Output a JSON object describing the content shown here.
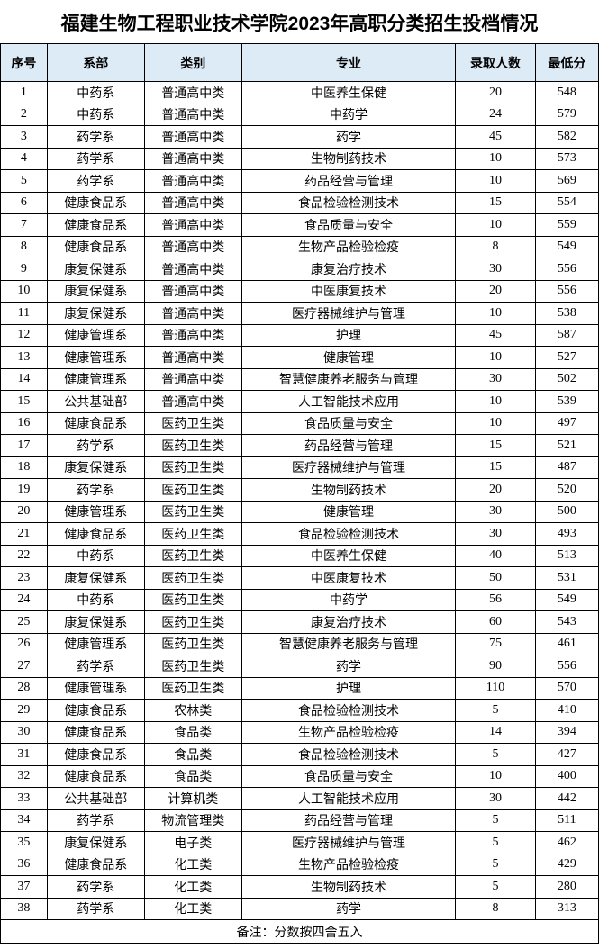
{
  "title": "福建生物工程职业技术学院2023年高职分类招生投档情况",
  "headers": {
    "no": "序号",
    "dept": "系部",
    "cat": "类别",
    "major": "专业",
    "count": "录取人数",
    "score": "最低分"
  },
  "footnote": "备注：分数按四舍五入",
  "colors": {
    "header_bg": "#ddebf7",
    "border": "#000000",
    "text": "#000000",
    "background": "#ffffff"
  },
  "rows": [
    {
      "no": "1",
      "dept": "中药系",
      "cat": "普通高中类",
      "major": "中医养生保健",
      "count": "20",
      "score": "548"
    },
    {
      "no": "2",
      "dept": "中药系",
      "cat": "普通高中类",
      "major": "中药学",
      "count": "24",
      "score": "579"
    },
    {
      "no": "3",
      "dept": "药学系",
      "cat": "普通高中类",
      "major": "药学",
      "count": "45",
      "score": "582"
    },
    {
      "no": "4",
      "dept": "药学系",
      "cat": "普通高中类",
      "major": "生物制药技术",
      "count": "10",
      "score": "573"
    },
    {
      "no": "5",
      "dept": "药学系",
      "cat": "普通高中类",
      "major": "药品经营与管理",
      "count": "10",
      "score": "569"
    },
    {
      "no": "6",
      "dept": "健康食品系",
      "cat": "普通高中类",
      "major": "食品检验检测技术",
      "count": "15",
      "score": "554"
    },
    {
      "no": "7",
      "dept": "健康食品系",
      "cat": "普通高中类",
      "major": "食品质量与安全",
      "count": "10",
      "score": "559"
    },
    {
      "no": "8",
      "dept": "健康食品系",
      "cat": "普通高中类",
      "major": "生物产品检验检疫",
      "count": "8",
      "score": "549"
    },
    {
      "no": "9",
      "dept": "康复保健系",
      "cat": "普通高中类",
      "major": "康复治疗技术",
      "count": "30",
      "score": "556"
    },
    {
      "no": "10",
      "dept": "康复保健系",
      "cat": "普通高中类",
      "major": "中医康复技术",
      "count": "20",
      "score": "556"
    },
    {
      "no": "11",
      "dept": "康复保健系",
      "cat": "普通高中类",
      "major": "医疗器械维护与管理",
      "count": "10",
      "score": "538"
    },
    {
      "no": "12",
      "dept": "健康管理系",
      "cat": "普通高中类",
      "major": "护理",
      "count": "45",
      "score": "587"
    },
    {
      "no": "13",
      "dept": "健康管理系",
      "cat": "普通高中类",
      "major": "健康管理",
      "count": "10",
      "score": "527"
    },
    {
      "no": "14",
      "dept": "健康管理系",
      "cat": "普通高中类",
      "major": "智慧健康养老服务与管理",
      "count": "30",
      "score": "502"
    },
    {
      "no": "15",
      "dept": "公共基础部",
      "cat": "普通高中类",
      "major": "人工智能技术应用",
      "count": "10",
      "score": "539"
    },
    {
      "no": "16",
      "dept": "健康食品系",
      "cat": "医药卫生类",
      "major": "食品质量与安全",
      "count": "10",
      "score": "497"
    },
    {
      "no": "17",
      "dept": "药学系",
      "cat": "医药卫生类",
      "major": "药品经营与管理",
      "count": "15",
      "score": "521"
    },
    {
      "no": "18",
      "dept": "康复保健系",
      "cat": "医药卫生类",
      "major": "医疗器械维护与管理",
      "count": "15",
      "score": "487"
    },
    {
      "no": "19",
      "dept": "药学系",
      "cat": "医药卫生类",
      "major": "生物制药技术",
      "count": "20",
      "score": "520"
    },
    {
      "no": "20",
      "dept": "健康管理系",
      "cat": "医药卫生类",
      "major": "健康管理",
      "count": "30",
      "score": "500"
    },
    {
      "no": "21",
      "dept": "健康食品系",
      "cat": "医药卫生类",
      "major": "食品检验检测技术",
      "count": "30",
      "score": "493"
    },
    {
      "no": "22",
      "dept": "中药系",
      "cat": "医药卫生类",
      "major": "中医养生保健",
      "count": "40",
      "score": "513"
    },
    {
      "no": "23",
      "dept": "康复保健系",
      "cat": "医药卫生类",
      "major": "中医康复技术",
      "count": "50",
      "score": "531"
    },
    {
      "no": "24",
      "dept": "中药系",
      "cat": "医药卫生类",
      "major": "中药学",
      "count": "56",
      "score": "549"
    },
    {
      "no": "25",
      "dept": "康复保健系",
      "cat": "医药卫生类",
      "major": "康复治疗技术",
      "count": "60",
      "score": "543"
    },
    {
      "no": "26",
      "dept": "健康管理系",
      "cat": "医药卫生类",
      "major": "智慧健康养老服务与管理",
      "count": "75",
      "score": "461"
    },
    {
      "no": "27",
      "dept": "药学系",
      "cat": "医药卫生类",
      "major": "药学",
      "count": "90",
      "score": "556"
    },
    {
      "no": "28",
      "dept": "健康管理系",
      "cat": "医药卫生类",
      "major": "护理",
      "count": "110",
      "score": "570"
    },
    {
      "no": "29",
      "dept": "健康食品系",
      "cat": "农林类",
      "major": "食品检验检测技术",
      "count": "5",
      "score": "410"
    },
    {
      "no": "30",
      "dept": "健康食品系",
      "cat": "食品类",
      "major": "生物产品检验检疫",
      "count": "14",
      "score": "394"
    },
    {
      "no": "31",
      "dept": "健康食品系",
      "cat": "食品类",
      "major": "食品检验检测技术",
      "count": "5",
      "score": "427"
    },
    {
      "no": "32",
      "dept": "健康食品系",
      "cat": "食品类",
      "major": "食品质量与安全",
      "count": "10",
      "score": "400"
    },
    {
      "no": "33",
      "dept": "公共基础部",
      "cat": "计算机类",
      "major": "人工智能技术应用",
      "count": "30",
      "score": "442"
    },
    {
      "no": "34",
      "dept": "药学系",
      "cat": "物流管理类",
      "major": "药品经营与管理",
      "count": "5",
      "score": "511"
    },
    {
      "no": "35",
      "dept": "康复保健系",
      "cat": "电子类",
      "major": "医疗器械维护与管理",
      "count": "5",
      "score": "462"
    },
    {
      "no": "36",
      "dept": "健康食品系",
      "cat": "化工类",
      "major": "生物产品检验检疫",
      "count": "5",
      "score": "429"
    },
    {
      "no": "37",
      "dept": "药学系",
      "cat": "化工类",
      "major": "生物制药技术",
      "count": "5",
      "score": "280"
    },
    {
      "no": "38",
      "dept": "药学系",
      "cat": "化工类",
      "major": "药学",
      "count": "8",
      "score": "313"
    }
  ]
}
